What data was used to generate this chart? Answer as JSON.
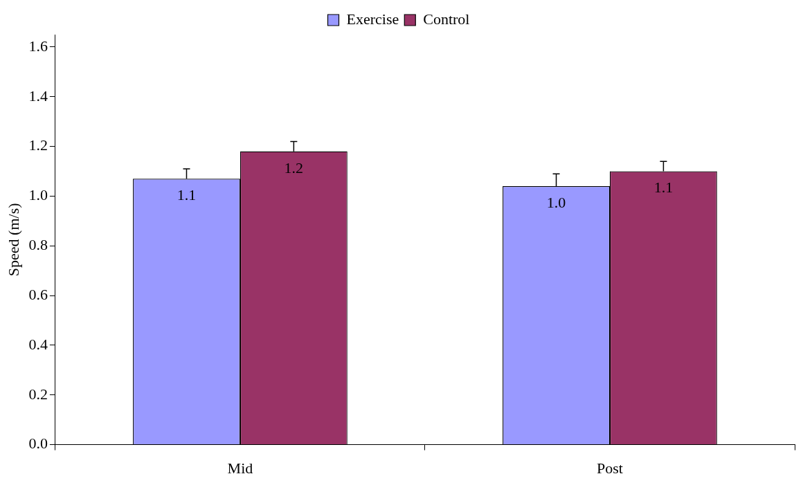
{
  "chart_data": {
    "type": "bar",
    "ylabel": "Speed (m/s)",
    "categories": [
      "Mid",
      "Post"
    ],
    "series": [
      {
        "name": "Exercise",
        "color": "#9999ff",
        "values": [
          1.07,
          1.04
        ],
        "errors": [
          [
            1.07,
            1.11
          ],
          [
            1.04,
            1.09
          ]
        ],
        "value_labels": [
          "1.1",
          "1.0"
        ]
      },
      {
        "name": "Control",
        "color": "#993366",
        "values": [
          1.18,
          1.1
        ],
        "errors": [
          [
            1.18,
            1.22
          ],
          [
            1.1,
            1.14
          ]
        ],
        "value_labels": [
          "1.2",
          "1.1"
        ]
      }
    ],
    "ylim": [
      0,
      1.65
    ],
    "yticks": [
      {
        "value": 0,
        "label": "0.0"
      },
      0.2,
      0.4,
      0.6,
      0.8,
      {
        "value": 1,
        "label": "1.0"
      },
      1.2,
      1.4,
      1.6
    ],
    "legend": "top"
  }
}
